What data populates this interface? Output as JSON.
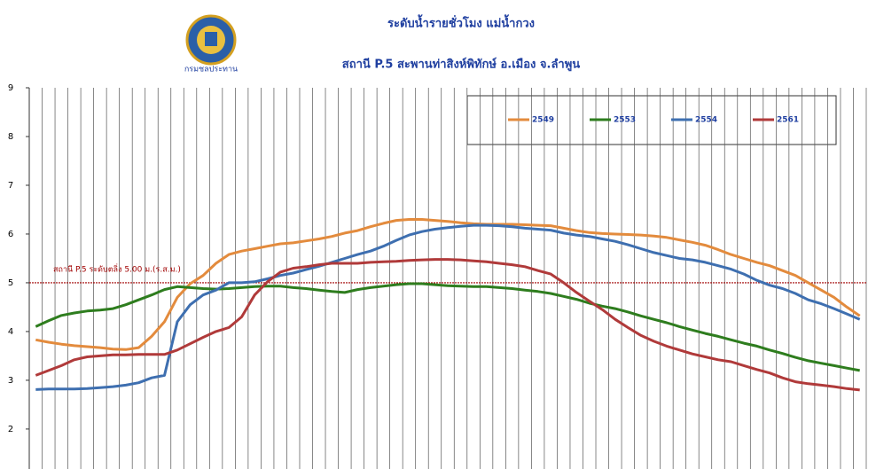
{
  "chart_data": {
    "type": "line",
    "title": "ระดับน้ำรายชั่วโมง แม่น้ำกวง",
    "subtitle": "สถานี P.5 สะพานท่าสิงห์พิทักษ์ อ.เมือง จ.ลำพูน",
    "logo_text": "กรมชลประทาน",
    "categories": [
      null,
      null,
      null,
      null,
      null,
      null,
      null,
      null,
      null,
      null,
      null,
      null,
      null,
      null,
      null,
      null,
      null,
      null,
      null,
      null,
      null,
      null,
      null,
      null,
      null,
      null,
      null,
      null,
      null,
      null,
      null,
      null,
      null,
      null,
      null,
      null,
      null,
      null,
      null,
      null,
      null,
      null,
      null,
      null,
      null,
      null,
      null,
      null,
      null,
      null,
      null,
      null,
      null,
      null,
      null,
      null,
      null,
      null,
      null,
      null,
      null,
      null,
      null,
      null,
      null
    ],
    "series": [
      {
        "name": "2549",
        "color": "#e38b3d",
        "values": [
          3.83,
          3.78,
          3.74,
          3.71,
          3.69,
          3.67,
          3.64,
          3.63,
          3.67,
          3.9,
          4.2,
          4.7,
          4.98,
          5.15,
          5.4,
          5.58,
          5.65,
          5.7,
          5.75,
          5.8,
          5.82,
          5.86,
          5.9,
          5.95,
          6.02,
          6.07,
          6.15,
          6.22,
          6.28,
          6.3,
          6.3,
          6.28,
          6.26,
          6.23,
          6.21,
          6.2,
          6.2,
          6.2,
          6.19,
          6.18,
          6.17,
          6.12,
          6.07,
          6.03,
          6.01,
          6.0,
          5.99,
          5.98,
          5.96,
          5.93,
          5.88,
          5.83,
          5.77,
          5.68,
          5.58,
          5.5,
          5.42,
          5.35,
          5.25,
          5.15,
          5.0,
          4.85,
          4.7,
          4.5,
          4.32
        ]
      },
      {
        "name": "2553",
        "color": "#2e7d1e",
        "values": [
          4.1,
          4.22,
          4.33,
          4.38,
          4.42,
          4.44,
          4.47,
          4.55,
          4.65,
          4.75,
          4.86,
          4.92,
          4.9,
          4.88,
          4.87,
          4.88,
          4.9,
          4.92,
          4.93,
          4.93,
          4.9,
          4.88,
          4.85,
          4.82,
          4.8,
          4.86,
          4.9,
          4.93,
          4.96,
          4.98,
          4.98,
          4.96,
          4.94,
          4.93,
          4.92,
          4.92,
          4.9,
          4.88,
          4.85,
          4.82,
          4.78,
          4.72,
          4.66,
          4.58,
          4.52,
          4.47,
          4.4,
          4.32,
          4.25,
          4.18,
          4.1,
          4.03,
          3.96,
          3.9,
          3.83,
          3.76,
          3.7,
          3.62,
          3.55,
          3.47,
          3.4,
          3.35,
          3.3,
          3.25,
          3.2
        ]
      },
      {
        "name": "2554",
        "color": "#3e6fb0",
        "values": [
          2.81,
          2.82,
          2.82,
          2.82,
          2.83,
          2.85,
          2.87,
          2.9,
          2.95,
          3.05,
          3.1,
          4.2,
          4.55,
          4.75,
          4.85,
          5.0,
          5.0,
          5.02,
          5.08,
          5.15,
          5.2,
          5.27,
          5.34,
          5.42,
          5.5,
          5.58,
          5.65,
          5.75,
          5.87,
          5.98,
          6.05,
          6.1,
          6.13,
          6.16,
          6.18,
          6.18,
          6.17,
          6.15,
          6.12,
          6.1,
          6.08,
          6.02,
          5.98,
          5.95,
          5.9,
          5.85,
          5.78,
          5.7,
          5.62,
          5.56,
          5.5,
          5.47,
          5.42,
          5.35,
          5.28,
          5.18,
          5.05,
          4.95,
          4.88,
          4.78,
          4.65,
          4.57,
          4.47,
          4.36,
          4.25
        ]
      },
      {
        "name": "2561",
        "color": "#b03a3a",
        "values": [
          3.1,
          3.2,
          3.3,
          3.42,
          3.48,
          3.5,
          3.52,
          3.52,
          3.53,
          3.53,
          3.53,
          3.62,
          3.75,
          3.88,
          4.0,
          4.08,
          4.3,
          4.75,
          5.02,
          5.22,
          5.3,
          5.33,
          5.37,
          5.4,
          5.4,
          5.4,
          5.42,
          5.43,
          5.44,
          5.46,
          5.47,
          5.48,
          5.48,
          5.47,
          5.45,
          5.43,
          5.4,
          5.37,
          5.33,
          5.25,
          5.18,
          5.0,
          4.8,
          4.62,
          4.45,
          4.25,
          4.08,
          3.92,
          3.8,
          3.7,
          3.62,
          3.54,
          3.48,
          3.42,
          3.38,
          3.3,
          3.22,
          3.15,
          3.05,
          2.97,
          2.93,
          2.9,
          2.87,
          2.83,
          2.8
        ]
      }
    ],
    "ylim": [
      1.18,
      9
    ],
    "yticks": [
      2,
      3,
      4,
      5,
      6,
      7,
      8,
      9
    ],
    "grid": true,
    "reference_line": {
      "value": 5,
      "label": "สถานี P.5 ระดับตลิ่ง 5.00 ม.(ร.ส.ม.)",
      "color": "#a00000"
    },
    "legend": "top-right"
  }
}
